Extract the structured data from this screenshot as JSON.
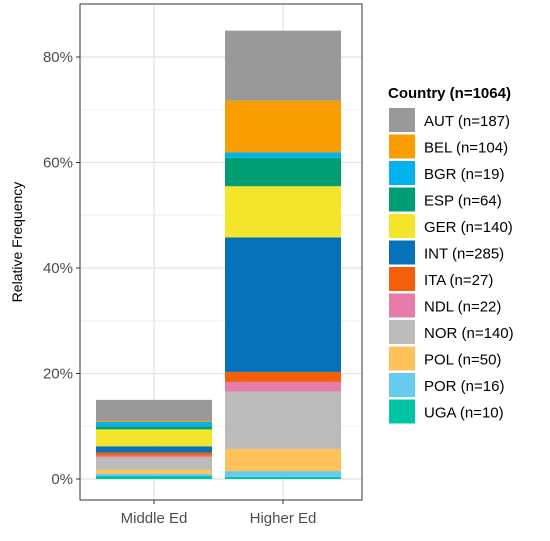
{
  "chart_data": {
    "type": "bar",
    "stacked": true,
    "categories": [
      "Middle Ed",
      "Higher Ed"
    ],
    "ylabel": "Relative Frequency",
    "xlabel": "",
    "ylim": [
      0,
      0.85
    ],
    "yticks": [
      0,
      0.2,
      0.4,
      0.6,
      0.8
    ],
    "ytick_labels": [
      "0%",
      "20%",
      "40%",
      "60%",
      "80%"
    ],
    "grid": true,
    "legend": {
      "title": "Country (n=1064)",
      "placement": "right"
    },
    "series": [
      {
        "key": "UGA",
        "label": "UGA (n=10)",
        "color": "#00C5A5",
        "values": [
          0.006,
          0.004
        ]
      },
      {
        "key": "POR",
        "label": "POR (n=16)",
        "color": "#66CCEE",
        "values": [
          0.004,
          0.011
        ]
      },
      {
        "key": "POL",
        "label": "POL (n=50)",
        "color": "#FFC15A",
        "values": [
          0.008,
          0.042
        ]
      },
      {
        "key": "NOR",
        "label": "NOR (n=140)",
        "color": "#BBBBBB",
        "values": [
          0.023,
          0.109
        ]
      },
      {
        "key": "NDL",
        "label": "NDL (n=22)",
        "color": "#E77BA9",
        "values": [
          0.003,
          0.018
        ]
      },
      {
        "key": "ITA",
        "label": "ITA (n=27)",
        "color": "#F4600A",
        "values": [
          0.006,
          0.019
        ]
      },
      {
        "key": "INT",
        "label": "INT (n=285)",
        "color": "#0571B8",
        "values": [
          0.012,
          0.255
        ]
      },
      {
        "key": "GER",
        "label": "GER (n=140)",
        "color": "#F5E52A",
        "values": [
          0.032,
          0.097
        ]
      },
      {
        "key": "ESP",
        "label": "ESP (n=64)",
        "color": "#009E73",
        "values": [
          0.006,
          0.054
        ]
      },
      {
        "key": "BGR",
        "label": "BGR (n=19)",
        "color": "#00B2EE",
        "values": [
          0.008,
          0.01
        ]
      },
      {
        "key": "BEL",
        "label": "BEL (n=104)",
        "color": "#FA9D00",
        "values": [
          0.002,
          0.098
        ]
      },
      {
        "key": "AUT",
        "label": "AUT (n=187)",
        "color": "#999999",
        "values": [
          0.04,
          0.133
        ]
      }
    ],
    "legend_order": [
      "AUT",
      "BEL",
      "BGR",
      "ESP",
      "GER",
      "INT",
      "ITA",
      "NDL",
      "NOR",
      "POL",
      "POR",
      "UGA"
    ]
  }
}
